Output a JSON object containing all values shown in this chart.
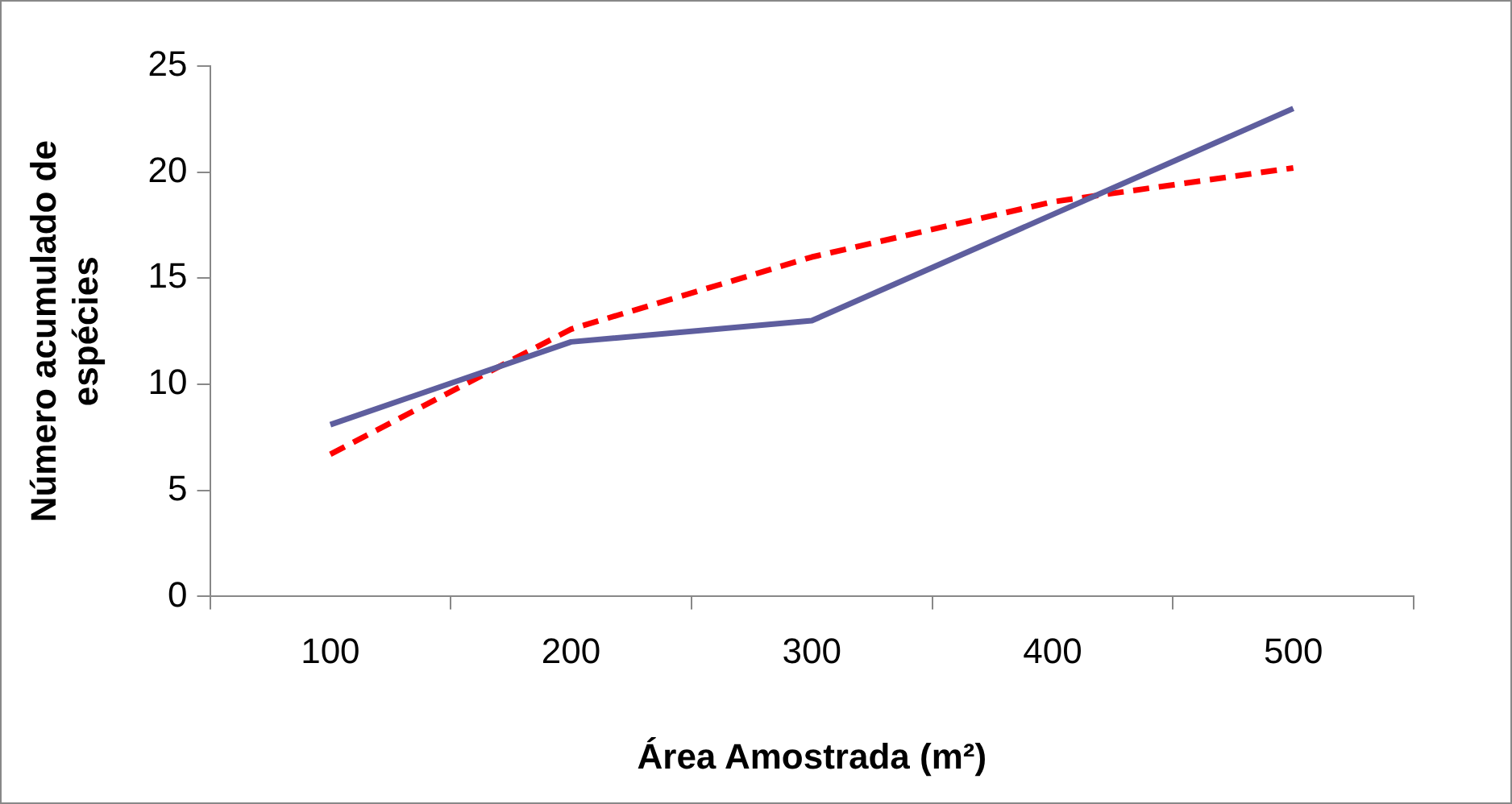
{
  "chart_data": {
    "type": "line",
    "xlabel": "Área Amostrada (m²)",
    "ylabel": "Número acumulado de espécies",
    "categories": [
      "100",
      "200",
      "300",
      "400",
      "500"
    ],
    "series": [
      {
        "color": "#5e5e9e",
        "line_style": "solid",
        "values": [
          8.1,
          12,
          13,
          18,
          23
        ]
      },
      {
        "color": "#ff0000",
        "line_style": "dashed",
        "values": [
          6.7,
          12.6,
          16,
          18.6,
          20.2
        ]
      }
    ],
    "ylim": [
      0,
      25
    ],
    "yticks": [
      0,
      5,
      10,
      15,
      20,
      25
    ],
    "grid": false,
    "legend": false,
    "marker": "none"
  }
}
